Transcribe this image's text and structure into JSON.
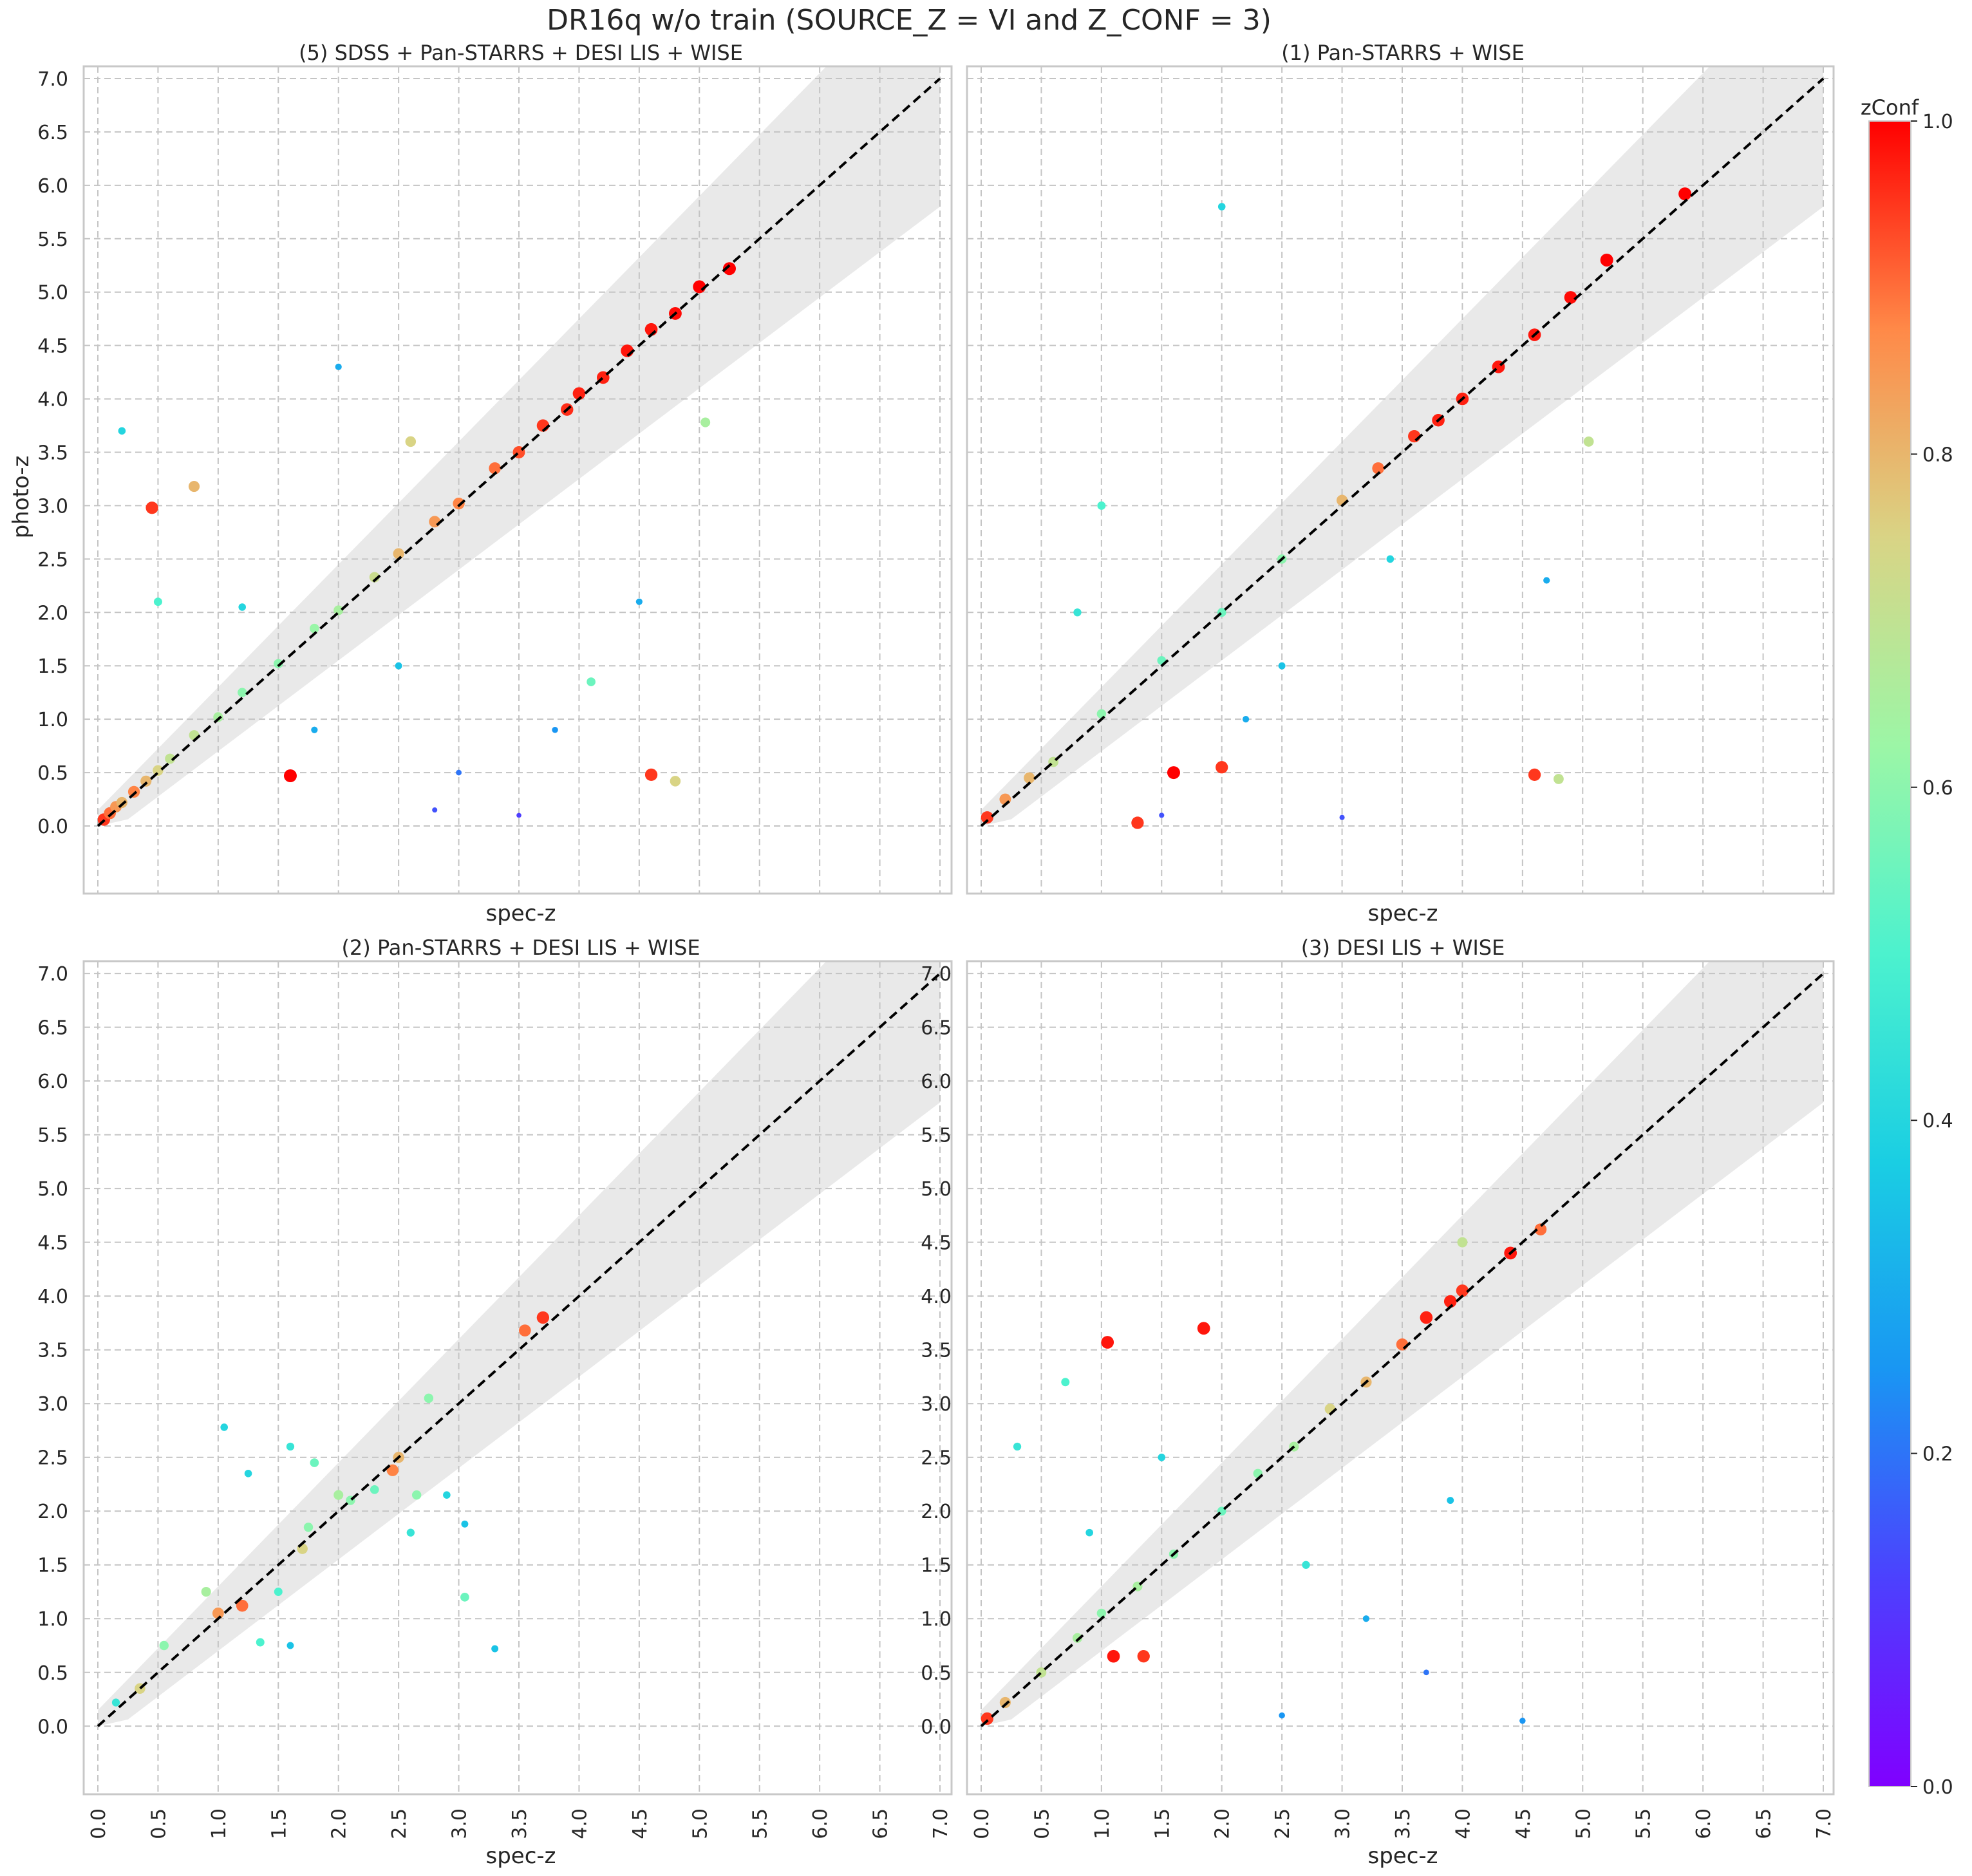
{
  "figure": {
    "title": "DR16q w/o train (SOURCE_Z = VI and Z_CONF = 3)",
    "ylabel": "photo-z",
    "colorbar": {
      "label": "zConf",
      "colormap": "rainbow",
      "ticks": [
        "0.0",
        "0.2",
        "0.4",
        "0.6",
        "0.8",
        "1.0"
      ]
    }
  },
  "ticks": [
    "0.0",
    "0.5",
    "1.0",
    "1.5",
    "2.0",
    "2.5",
    "3.0",
    "3.5",
    "4.0",
    "4.5",
    "5.0",
    "5.5",
    "6.0",
    "6.5",
    "7.0"
  ],
  "colors": {
    "frame": "#c8c8c8",
    "grid": "#c4c4c4",
    "band": "#e9e9e9",
    "diagonal": "#000000",
    "text": "#262626"
  },
  "chart_data": [
    {
      "type": "scatter",
      "title": "(5) SDSS + Pan-STARRS + DESI LIS + WISE",
      "xlabel": "spec-z",
      "ylabel": "photo-z",
      "xlim": [
        0,
        7.0
      ],
      "ylim": [
        0,
        7.0
      ],
      "grid": true,
      "reference_line": {
        "x": [
          0,
          7
        ],
        "y": [
          0,
          7
        ],
        "style": "dashed"
      },
      "band": "|Δz| / (1 + z) ≤ 0.15",
      "points": [
        {
          "x": 0.05,
          "y": 0.06,
          "c": 0.95
        },
        {
          "x": 0.1,
          "y": 0.12,
          "c": 0.9
        },
        {
          "x": 0.15,
          "y": 0.18,
          "c": 0.85
        },
        {
          "x": 0.2,
          "y": 0.22,
          "c": 0.8
        },
        {
          "x": 0.3,
          "y": 0.32,
          "c": 0.88
        },
        {
          "x": 0.4,
          "y": 0.42,
          "c": 0.8
        },
        {
          "x": 0.5,
          "y": 0.52,
          "c": 0.75
        },
        {
          "x": 0.6,
          "y": 0.63,
          "c": 0.7
        },
        {
          "x": 0.8,
          "y": 0.85,
          "c": 0.7
        },
        {
          "x": 1.0,
          "y": 1.02,
          "c": 0.65
        },
        {
          "x": 1.2,
          "y": 1.25,
          "c": 0.6
        },
        {
          "x": 1.5,
          "y": 1.52,
          "c": 0.6
        },
        {
          "x": 1.8,
          "y": 1.85,
          "c": 0.62
        },
        {
          "x": 2.0,
          "y": 2.02,
          "c": 0.65
        },
        {
          "x": 2.3,
          "y": 2.33,
          "c": 0.72
        },
        {
          "x": 2.5,
          "y": 2.55,
          "c": 0.8
        },
        {
          "x": 2.8,
          "y": 2.85,
          "c": 0.85
        },
        {
          "x": 3.0,
          "y": 3.02,
          "c": 0.88
        },
        {
          "x": 3.3,
          "y": 3.35,
          "c": 0.9
        },
        {
          "x": 3.5,
          "y": 3.5,
          "c": 0.93
        },
        {
          "x": 3.7,
          "y": 3.75,
          "c": 0.95
        },
        {
          "x": 3.9,
          "y": 3.9,
          "c": 0.96
        },
        {
          "x": 4.0,
          "y": 4.05,
          "c": 0.97
        },
        {
          "x": 4.2,
          "y": 4.2,
          "c": 0.97
        },
        {
          "x": 4.4,
          "y": 4.45,
          "c": 0.98
        },
        {
          "x": 4.6,
          "y": 4.65,
          "c": 0.98
        },
        {
          "x": 4.8,
          "y": 4.8,
          "c": 0.99
        },
        {
          "x": 5.0,
          "y": 5.05,
          "c": 1.0
        },
        {
          "x": 5.25,
          "y": 5.22,
          "c": 1.0
        },
        {
          "x": 5.05,
          "y": 3.78,
          "c": 0.65
        },
        {
          "x": 4.6,
          "y": 0.48,
          "c": 0.95
        },
        {
          "x": 4.8,
          "y": 0.42,
          "c": 0.75
        },
        {
          "x": 1.6,
          "y": 0.47,
          "c": 1.0
        },
        {
          "x": 0.45,
          "y": 2.98,
          "c": 0.95
        },
        {
          "x": 0.8,
          "y": 3.18,
          "c": 0.8
        },
        {
          "x": 0.5,
          "y": 2.1,
          "c": 0.5
        },
        {
          "x": 1.2,
          "y": 2.05,
          "c": 0.4
        },
        {
          "x": 2.5,
          "y": 1.5,
          "c": 0.35
        },
        {
          "x": 1.8,
          "y": 0.9,
          "c": 0.3
        },
        {
          "x": 3.0,
          "y": 0.5,
          "c": 0.2
        },
        {
          "x": 2.8,
          "y": 0.15,
          "c": 0.15
        },
        {
          "x": 3.5,
          "y": 0.1,
          "c": 0.12
        },
        {
          "x": 4.1,
          "y": 1.35,
          "c": 0.55
        },
        {
          "x": 4.5,
          "y": 2.1,
          "c": 0.3
        },
        {
          "x": 2.0,
          "y": 4.3,
          "c": 0.3
        },
        {
          "x": 0.2,
          "y": 3.7,
          "c": 0.4
        },
        {
          "x": 2.6,
          "y": 3.6,
          "c": 0.75
        },
        {
          "x": 3.8,
          "y": 0.9,
          "c": 0.25
        }
      ]
    },
    {
      "type": "scatter",
      "title": "(1) Pan-STARRS + WISE",
      "xlabel": "spec-z",
      "ylabel": "",
      "xlim": [
        0,
        7.0
      ],
      "ylim": [
        0,
        7.0
      ],
      "grid": true,
      "reference_line": {
        "x": [
          0,
          7
        ],
        "y": [
          0,
          7
        ],
        "style": "dashed"
      },
      "band": "|Δz| / (1 + z) ≤ 0.15",
      "points": [
        {
          "x": 0.05,
          "y": 0.08,
          "c": 0.95
        },
        {
          "x": 0.2,
          "y": 0.25,
          "c": 0.85
        },
        {
          "x": 0.4,
          "y": 0.45,
          "c": 0.8
        },
        {
          "x": 0.6,
          "y": 0.6,
          "c": 0.7
        },
        {
          "x": 1.0,
          "y": 1.05,
          "c": 0.6
        },
        {
          "x": 1.5,
          "y": 1.55,
          "c": 0.55
        },
        {
          "x": 2.0,
          "y": 2.0,
          "c": 0.55
        },
        {
          "x": 2.5,
          "y": 2.5,
          "c": 0.6
        },
        {
          "x": 3.0,
          "y": 3.05,
          "c": 0.8
        },
        {
          "x": 3.3,
          "y": 3.35,
          "c": 0.9
        },
        {
          "x": 3.6,
          "y": 3.65,
          "c": 0.95
        },
        {
          "x": 3.8,
          "y": 3.8,
          "c": 0.97
        },
        {
          "x": 4.0,
          "y": 4.0,
          "c": 0.97
        },
        {
          "x": 4.3,
          "y": 4.3,
          "c": 0.98
        },
        {
          "x": 4.6,
          "y": 4.6,
          "c": 0.98
        },
        {
          "x": 4.9,
          "y": 4.95,
          "c": 0.99
        },
        {
          "x": 5.2,
          "y": 5.3,
          "c": 1.0
        },
        {
          "x": 5.85,
          "y": 5.92,
          "c": 1.0
        },
        {
          "x": 5.05,
          "y": 3.6,
          "c": 0.7
        },
        {
          "x": 4.6,
          "y": 0.48,
          "c": 0.95
        },
        {
          "x": 4.8,
          "y": 0.44,
          "c": 0.7
        },
        {
          "x": 2.0,
          "y": 5.8,
          "c": 0.4
        },
        {
          "x": 1.0,
          "y": 3.0,
          "c": 0.5
        },
        {
          "x": 2.5,
          "y": 1.5,
          "c": 0.35
        },
        {
          "x": 1.5,
          "y": 0.1,
          "c": 0.15
        },
        {
          "x": 3.0,
          "y": 0.08,
          "c": 0.15
        },
        {
          "x": 1.3,
          "y": 0.03,
          "c": 0.95
        },
        {
          "x": 1.6,
          "y": 0.5,
          "c": 1.0
        },
        {
          "x": 2.0,
          "y": 0.55,
          "c": 0.95
        },
        {
          "x": 3.4,
          "y": 2.5,
          "c": 0.4
        },
        {
          "x": 4.7,
          "y": 2.3,
          "c": 0.3
        },
        {
          "x": 0.8,
          "y": 2.0,
          "c": 0.45
        },
        {
          "x": 2.2,
          "y": 1.0,
          "c": 0.3
        }
      ]
    },
    {
      "type": "scatter",
      "title": "(2) Pan-STARRS + DESI LIS + WISE",
      "xlabel": "spec-z",
      "ylabel": "",
      "xlim": [
        0,
        7.0
      ],
      "ylim": [
        0,
        7.0
      ],
      "grid": true,
      "reference_line": {
        "x": [
          0,
          7
        ],
        "y": [
          0,
          7
        ],
        "style": "dashed"
      },
      "band": "|Δz| / (1 + z) ≤ 0.15",
      "points": [
        {
          "x": 0.35,
          "y": 0.35,
          "c": 0.75
        },
        {
          "x": 0.15,
          "y": 0.22,
          "c": 0.45
        },
        {
          "x": 0.55,
          "y": 0.75,
          "c": 0.6
        },
        {
          "x": 0.9,
          "y": 1.25,
          "c": 0.65
        },
        {
          "x": 1.0,
          "y": 1.05,
          "c": 0.85
        },
        {
          "x": 1.05,
          "y": 2.78,
          "c": 0.4
        },
        {
          "x": 1.2,
          "y": 1.12,
          "c": 0.9
        },
        {
          "x": 1.25,
          "y": 2.35,
          "c": 0.4
        },
        {
          "x": 1.35,
          "y": 0.78,
          "c": 0.5
        },
        {
          "x": 1.5,
          "y": 1.25,
          "c": 0.5
        },
        {
          "x": 1.6,
          "y": 2.6,
          "c": 0.45
        },
        {
          "x": 1.6,
          "y": 0.75,
          "c": 0.35
        },
        {
          "x": 1.7,
          "y": 1.65,
          "c": 0.75
        },
        {
          "x": 1.75,
          "y": 1.85,
          "c": 0.6
        },
        {
          "x": 1.8,
          "y": 2.45,
          "c": 0.55
        },
        {
          "x": 2.0,
          "y": 2.15,
          "c": 0.65
        },
        {
          "x": 2.1,
          "y": 2.1,
          "c": 0.6
        },
        {
          "x": 2.3,
          "y": 2.2,
          "c": 0.55
        },
        {
          "x": 2.45,
          "y": 2.38,
          "c": 0.88
        },
        {
          "x": 2.5,
          "y": 2.5,
          "c": 0.8
        },
        {
          "x": 2.6,
          "y": 1.8,
          "c": 0.45
        },
        {
          "x": 2.65,
          "y": 2.15,
          "c": 0.6
        },
        {
          "x": 2.75,
          "y": 3.05,
          "c": 0.6
        },
        {
          "x": 2.9,
          "y": 2.15,
          "c": 0.4
        },
        {
          "x": 3.05,
          "y": 1.88,
          "c": 0.35
        },
        {
          "x": 3.05,
          "y": 1.2,
          "c": 0.55
        },
        {
          "x": 3.3,
          "y": 0.72,
          "c": 0.35
        },
        {
          "x": 3.55,
          "y": 3.68,
          "c": 0.9
        },
        {
          "x": 3.7,
          "y": 3.8,
          "c": 0.95
        }
      ]
    },
    {
      "type": "scatter",
      "title": "(3) DESI LIS + WISE",
      "xlabel": "spec-z",
      "ylabel": "",
      "xlim": [
        0,
        7.0
      ],
      "ylim": [
        0,
        7.0
      ],
      "grid": true,
      "reference_line": {
        "x": [
          0,
          7
        ],
        "y": [
          0,
          7
        ],
        "style": "dashed"
      },
      "band": "|Δz| / (1 + z) ≤ 0.15",
      "points": [
        {
          "x": 0.05,
          "y": 0.07,
          "c": 0.95
        },
        {
          "x": 0.2,
          "y": 0.22,
          "c": 0.8
        },
        {
          "x": 0.5,
          "y": 0.5,
          "c": 0.7
        },
        {
          "x": 0.8,
          "y": 0.82,
          "c": 0.65
        },
        {
          "x": 1.0,
          "y": 1.05,
          "c": 0.6
        },
        {
          "x": 1.3,
          "y": 1.3,
          "c": 0.65
        },
        {
          "x": 1.6,
          "y": 1.6,
          "c": 0.6
        },
        {
          "x": 2.0,
          "y": 2.0,
          "c": 0.55
        },
        {
          "x": 2.3,
          "y": 2.35,
          "c": 0.6
        },
        {
          "x": 2.6,
          "y": 2.6,
          "c": 0.65
        },
        {
          "x": 2.9,
          "y": 2.95,
          "c": 0.75
        },
        {
          "x": 3.2,
          "y": 3.2,
          "c": 0.8
        },
        {
          "x": 3.5,
          "y": 3.55,
          "c": 0.9
        },
        {
          "x": 3.7,
          "y": 3.8,
          "c": 0.97
        },
        {
          "x": 3.9,
          "y": 3.95,
          "c": 0.97
        },
        {
          "x": 4.0,
          "y": 4.05,
          "c": 0.95
        },
        {
          "x": 4.4,
          "y": 4.4,
          "c": 0.98
        },
        {
          "x": 4.65,
          "y": 4.62,
          "c": 0.9
        },
        {
          "x": 4.0,
          "y": 4.5,
          "c": 0.7
        },
        {
          "x": 1.05,
          "y": 3.57,
          "c": 0.98
        },
        {
          "x": 1.85,
          "y": 3.7,
          "c": 0.98
        },
        {
          "x": 1.1,
          "y": 0.65,
          "c": 0.98
        },
        {
          "x": 1.35,
          "y": 0.65,
          "c": 0.95
        },
        {
          "x": 0.7,
          "y": 3.2,
          "c": 0.5
        },
        {
          "x": 0.3,
          "y": 2.6,
          "c": 0.45
        },
        {
          "x": 1.5,
          "y": 2.5,
          "c": 0.4
        },
        {
          "x": 3.2,
          "y": 1.0,
          "c": 0.3
        },
        {
          "x": 3.7,
          "y": 0.5,
          "c": 0.2
        },
        {
          "x": 2.5,
          "y": 0.1,
          "c": 0.25
        },
        {
          "x": 4.5,
          "y": 0.05,
          "c": 0.25
        },
        {
          "x": 2.7,
          "y": 1.5,
          "c": 0.45
        },
        {
          "x": 0.9,
          "y": 1.8,
          "c": 0.4
        },
        {
          "x": 3.9,
          "y": 2.1,
          "c": 0.35
        }
      ]
    }
  ]
}
